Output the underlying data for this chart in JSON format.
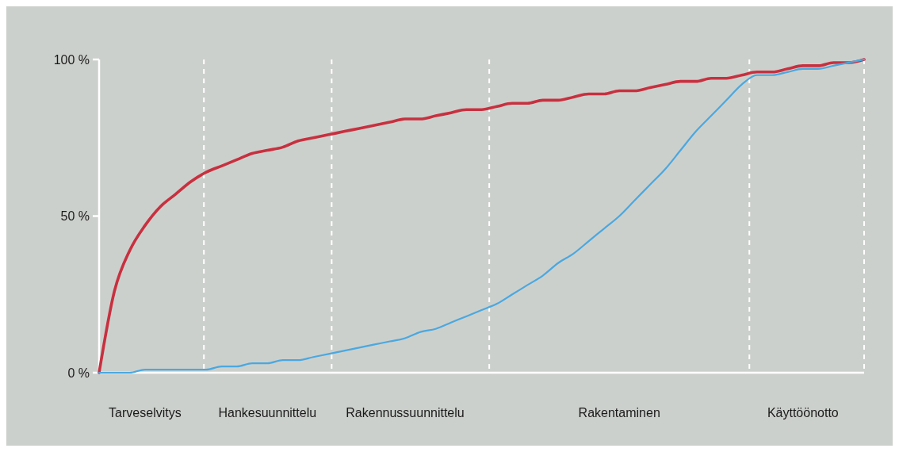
{
  "chart_data": {
    "type": "line",
    "ylim": [
      0,
      100
    ],
    "categories": [
      null,
      null,
      null,
      "Tarveselvitys",
      null,
      null,
      null,
      null,
      null,
      null,
      null,
      "Hankesuunnittelu",
      null,
      null,
      null,
      null,
      null,
      null,
      null,
      null,
      "Rakennussuunnittelu",
      null,
      null,
      null,
      null,
      null,
      null,
      null,
      null,
      null,
      null,
      null,
      null,
      null,
      "Rakentaminen",
      null,
      null,
      null,
      null,
      null,
      null,
      null,
      null,
      null,
      null,
      null,
      "Käyttöönotto",
      null,
      null,
      null,
      null
    ],
    "yticks": [
      {
        "value": 0,
        "label": "0 %"
      },
      {
        "value": 50,
        "label": "50 %"
      },
      {
        "value": 100,
        "label": "100 %"
      }
    ],
    "grid": "x",
    "series": [
      {
        "color": "#c8303f",
        "values": [
          0,
          26,
          39,
          47,
          53,
          57,
          61,
          64,
          66,
          68,
          70,
          71,
          72,
          74,
          75,
          76,
          77,
          78,
          79,
          80,
          81,
          81,
          82,
          83,
          84,
          84,
          85,
          86,
          86,
          87,
          87,
          88,
          89,
          89,
          90,
          90,
          91,
          92,
          93,
          93,
          94,
          94,
          95,
          96,
          96,
          97,
          98,
          98,
          99,
          99,
          100
        ]
      },
      {
        "color": "#4aa8e0",
        "values": [
          0,
          0,
          0,
          1,
          1,
          1,
          1,
          1,
          2,
          2,
          3,
          3,
          4,
          4,
          5,
          6,
          7,
          8,
          9,
          10,
          11,
          13,
          14,
          16,
          18,
          20,
          22,
          25,
          28,
          31,
          35,
          38,
          42,
          46,
          50,
          55,
          60,
          65,
          71,
          77,
          82,
          87,
          92,
          95,
          95,
          96,
          97,
          97,
          98,
          99,
          100
        ]
      }
    ]
  }
}
